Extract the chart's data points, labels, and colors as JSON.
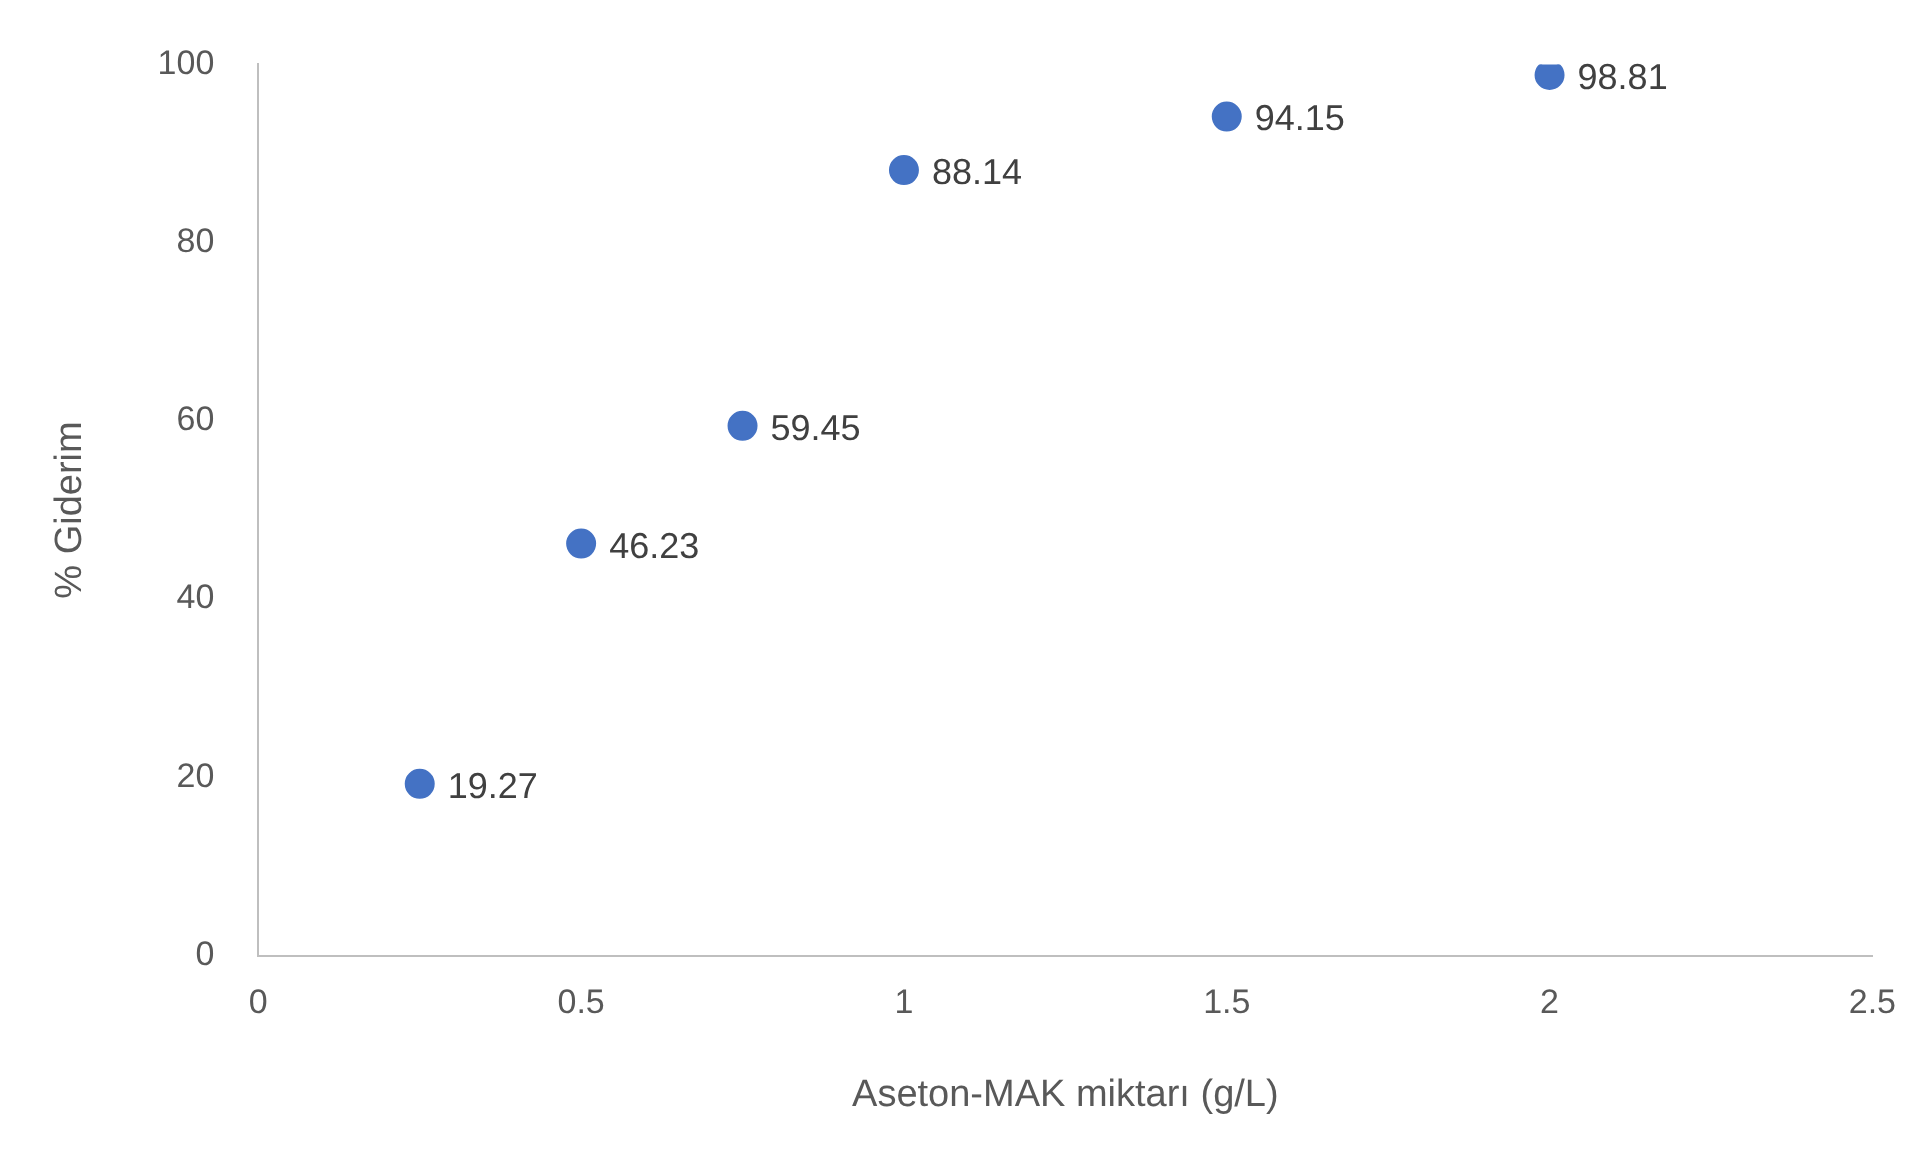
{
  "chart_data": {
    "type": "scatter",
    "xlabel": "Aseton-MAK miktarı (g/L)",
    "ylabel": "% Giderim",
    "x": [
      0.25,
      0.5,
      0.75,
      1,
      1.5,
      2
    ],
    "series": [
      {
        "color": "#4472c4",
        "values": [
          19.27,
          46.23,
          59.45,
          88.14,
          94.15,
          98.81
        ]
      }
    ],
    "xlim": [
      0,
      2.5
    ],
    "xticks": [
      0,
      0.5,
      1,
      1.5,
      2,
      2.5
    ],
    "ylim": [
      0,
      100
    ],
    "yticks": [
      0,
      20,
      40,
      60,
      80,
      100
    ],
    "grid": false,
    "legend": false,
    "marker": "circle",
    "data_labels": true
  }
}
